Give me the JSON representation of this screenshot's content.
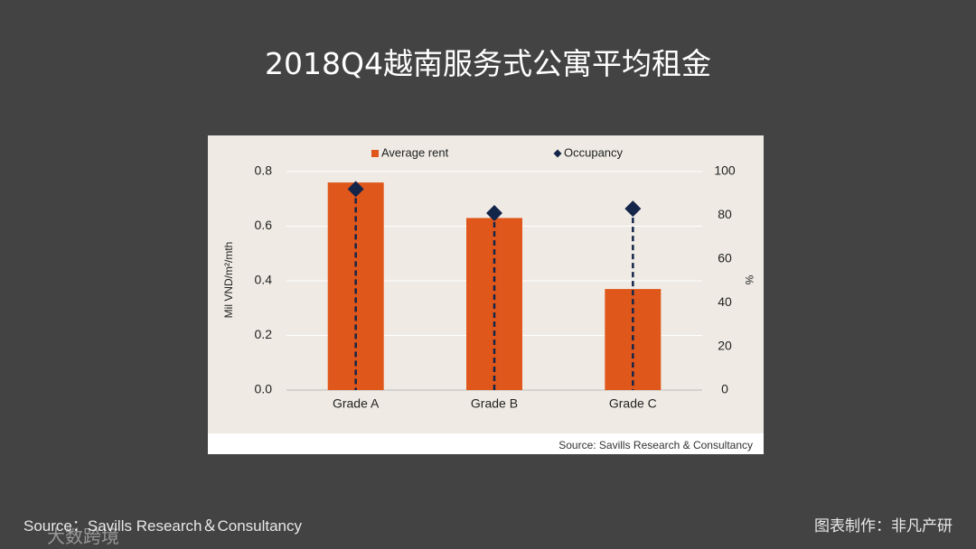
{
  "slide": {
    "title": "2018Q4越南服务式公寓平均租金",
    "source": "Source：Savills Research＆Consultancy",
    "credit": "图表制作：非凡产研",
    "watermark": "大数跨境"
  },
  "chart_data": {
    "type": "bar",
    "categories": [
      "Grade A",
      "Grade B",
      "Grade C"
    ],
    "series": [
      {
        "name": "Average rent",
        "type": "bar",
        "color": "#e0571b",
        "values": [
          0.76,
          0.63,
          0.37
        ]
      },
      {
        "name": "Occupancy",
        "type": "scatter",
        "axis": "y2",
        "color": "#14254a",
        "values": [
          92,
          81,
          83
        ]
      }
    ],
    "y_label": "Mil VND/m²/mth",
    "y2_label": "%",
    "ylim": [
      0,
      0.8
    ],
    "yticks": [
      {
        "value": 0,
        "label": "0.0"
      },
      {
        "value": 0.2,
        "label": "0.2"
      },
      {
        "value": 0.4,
        "label": "0.4"
      },
      {
        "value": 0.6,
        "label": "0.6"
      },
      {
        "value": 0.8,
        "label": "0.8"
      }
    ],
    "y2lim": [
      0,
      100
    ],
    "y2ticks": [
      0,
      20,
      40,
      60,
      80,
      100
    ],
    "grid": true,
    "legend": "top",
    "note": "Source: Savills Research & Consultancy"
  }
}
